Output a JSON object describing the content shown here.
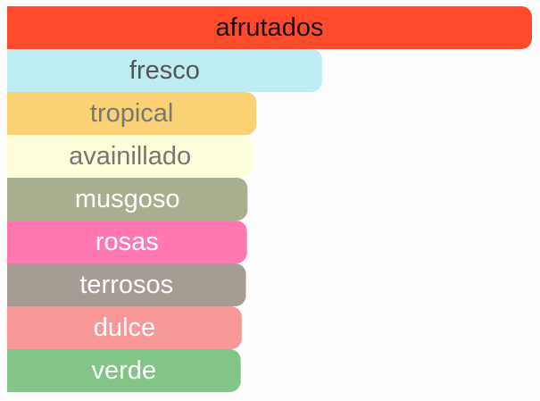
{
  "chart_data": {
    "type": "bar",
    "orientation": "horizontal",
    "categories": [
      "afrutados",
      "fresco",
      "tropical",
      "avainillado",
      "musgoso",
      "rosas",
      "terrosos",
      "dulce",
      "verde"
    ],
    "values": [
      100,
      60,
      47.5,
      46.8,
      45.8,
      45.7,
      45.5,
      44.7,
      44.5
    ],
    "colors": [
      "#ff4b2b",
      "#bdecf2",
      "#fad275",
      "#fffedb",
      "#a7af8f",
      "#ff78b0",
      "#a59d93",
      "#f89899",
      "#83c487"
    ],
    "label_colors": [
      "#111111",
      "#555555",
      "#777777",
      "#777777",
      "#ffffff",
      "#ffffff",
      "#ffffff",
      "#ffffff",
      "#ffffff"
    ],
    "xlim": [
      0,
      100
    ]
  }
}
